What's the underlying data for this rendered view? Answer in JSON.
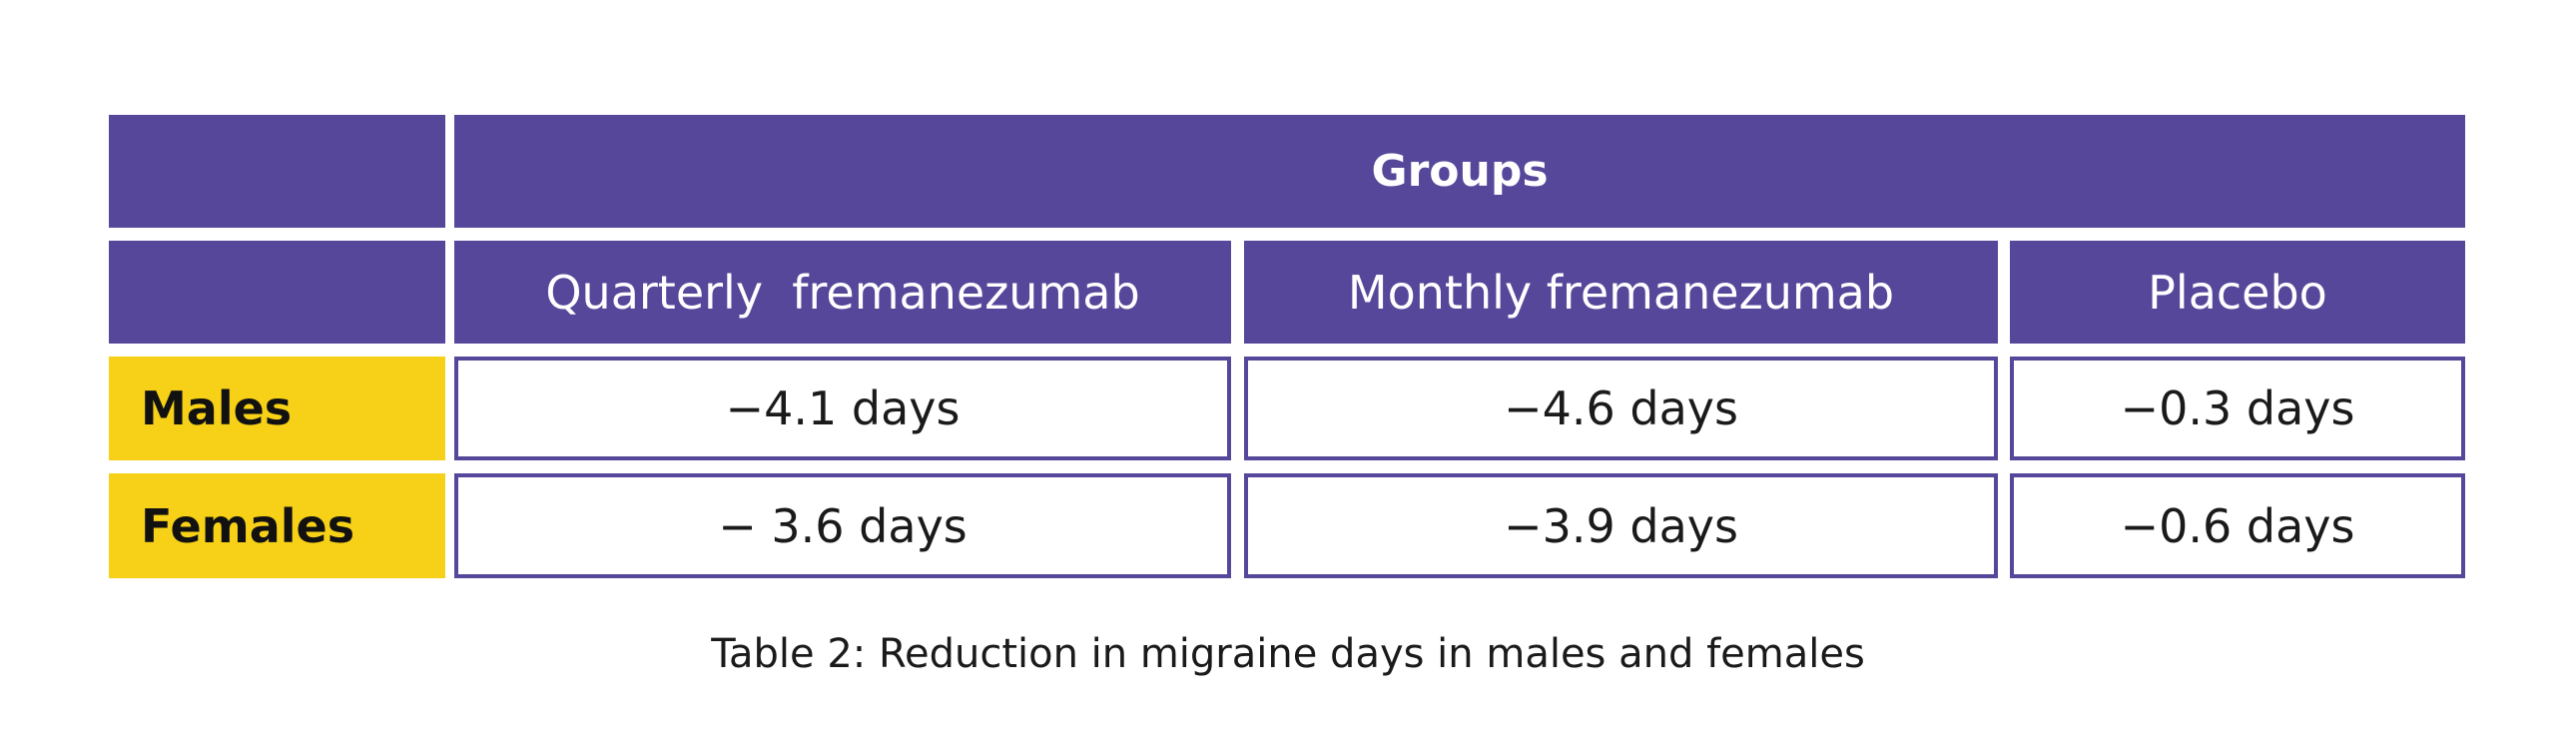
{
  "colors": {
    "header_purple": "#56479A",
    "row_label_yellow": "#F7D117"
  },
  "table": {
    "group_header": "Groups",
    "columns": [
      "Quarterly  fremanezumab",
      "Monthly fremanezumab",
      "Placebo"
    ],
    "rows": [
      {
        "label": "Males",
        "values": [
          "−4.1 days",
          "−4.6 days",
          "−0.3 days"
        ]
      },
      {
        "label": "Females",
        "values": [
          "− 3.6 days",
          "−3.9 days",
          "−0.6 days"
        ]
      }
    ]
  },
  "caption": "Table 2: Reduction in migraine days in males and females"
}
